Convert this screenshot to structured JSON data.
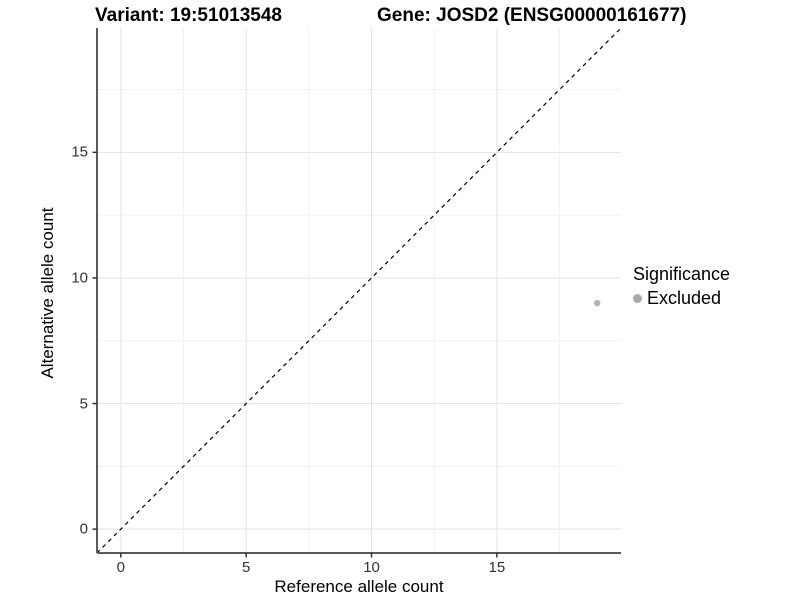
{
  "header": {
    "variant_title": "Variant: 19:51013548",
    "gene_title": "Gene: JOSD2 (ENSG00000161677)"
  },
  "chart_data": {
    "type": "scatter",
    "xlabel": "Reference allele count",
    "ylabel": "Alternative allele count",
    "x_ticks": [
      0,
      5,
      10,
      15
    ],
    "y_ticks": [
      0,
      5,
      10,
      15
    ],
    "x_minor_ticks": [
      2.5,
      7.5,
      12.5,
      17.5
    ],
    "y_minor_ticks": [
      2.5,
      7.5,
      12.5,
      17.5
    ],
    "xlim": [
      -0.95,
      19.95
    ],
    "ylim": [
      -0.95,
      19.95
    ],
    "grid": "major and minor, light gray on white",
    "reference_line": {
      "kind": "identity y=x",
      "style": "dashed",
      "color": "#000000"
    },
    "series": [
      {
        "name": "Excluded",
        "color": "#b3b3b3",
        "points": [
          {
            "x": 19,
            "y": 9
          }
        ]
      }
    ],
    "legend": {
      "title": "Significance",
      "position": "right",
      "items": [
        {
          "label": "Excluded",
          "color": "#a9a9a9"
        }
      ]
    },
    "colors": {
      "grid_major": "#e3e3e3",
      "grid_minor": "#f1f1f1",
      "axis_line": "#5a5a5a",
      "tick_mark": "#333333",
      "point": "#b9b9b9"
    }
  }
}
